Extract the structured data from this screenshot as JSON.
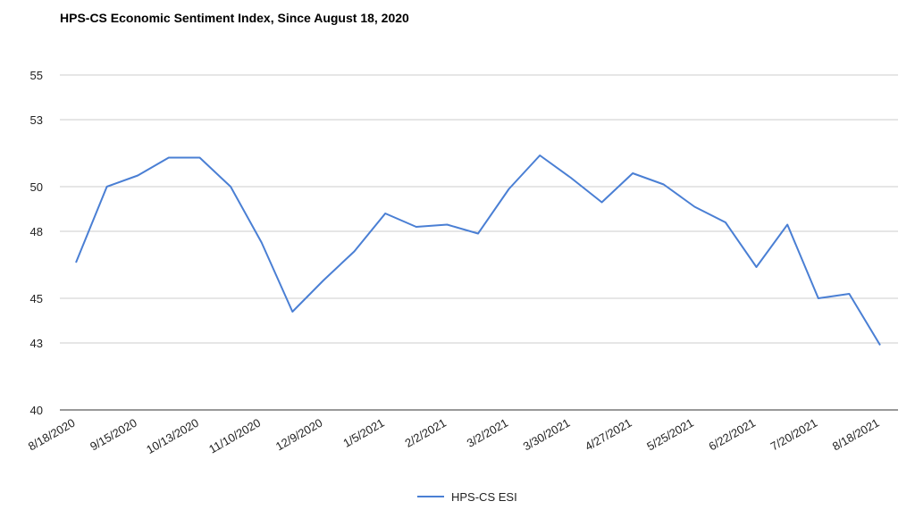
{
  "chart_data": {
    "type": "line",
    "title": "HPS-CS Economic Sentiment Index, Since August 18, 2020",
    "xlabel": "",
    "ylabel": "",
    "ylim": [
      40,
      55
    ],
    "yticks": [
      40,
      43,
      45,
      48,
      50,
      53,
      55
    ],
    "ytick_labels": [
      "40",
      "43",
      "45",
      "48",
      "50",
      "53",
      "55"
    ],
    "xtick_labels": [
      "8/18/2020",
      "9/15/2020",
      "10/13/2020",
      "11/10/2020",
      "12/9/2020",
      "1/5/2021",
      "2/2/2021",
      "3/2/2021",
      "3/30/2021",
      "4/27/2021",
      "5/25/2021",
      "6/22/2021",
      "7/20/2021",
      "8/18/2021"
    ],
    "x": [
      "8/18/2020",
      "9/1/2020",
      "9/15/2020",
      "9/29/2020",
      "10/13/2020",
      "10/27/2020",
      "11/10/2020",
      "11/24/2020",
      "12/9/2020",
      "12/22/2020",
      "1/5/2021",
      "1/19/2021",
      "2/2/2021",
      "2/16/2021",
      "3/2/2021",
      "3/16/2021",
      "3/30/2021",
      "4/13/2021",
      "4/27/2021",
      "5/11/2021",
      "5/25/2021",
      "6/8/2021",
      "6/22/2021",
      "7/6/2021",
      "7/20/2021",
      "8/3/2021",
      "8/18/2021"
    ],
    "series": [
      {
        "name": "HPS-CS ESI",
        "color": "#4a7fd4",
        "values": [
          46.6,
          50.0,
          50.5,
          51.3,
          51.3,
          50.0,
          47.5,
          44.4,
          45.8,
          47.1,
          48.8,
          48.2,
          48.3,
          47.9,
          49.9,
          51.4,
          50.4,
          49.3,
          50.6,
          50.1,
          49.1,
          48.4,
          46.4,
          48.3,
          45.0,
          45.2,
          42.9
        ]
      }
    ],
    "grid": true,
    "legend": "bottom"
  }
}
